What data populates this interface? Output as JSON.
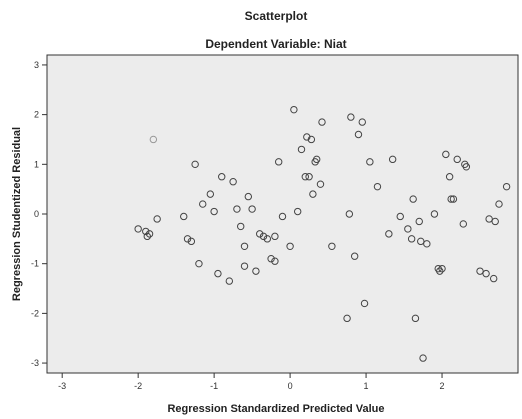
{
  "chart_data": {
    "type": "scatter",
    "title": "Scatterplot",
    "subtitle": "Dependent Variable: Niat",
    "xlabel": "Regression Standardized Predicted Value",
    "ylabel": "Regression Studentized Residual",
    "xlim": [
      -3.2,
      3.0
    ],
    "ylim": [
      -3.2,
      3.2
    ],
    "x_ticks": [
      -3,
      -2,
      -1,
      0,
      1,
      2
    ],
    "x_tick_labels": [
      "-3",
      "-2",
      "-1",
      "0",
      "1",
      "2"
    ],
    "y_ticks": [
      -3,
      -2,
      -1,
      0,
      1,
      2,
      3
    ],
    "y_tick_labels": [
      "-3",
      "-2",
      "-1",
      "0",
      "1",
      "2",
      "3"
    ],
    "grid": false,
    "point_color": "#444444",
    "background_color": "#ececec",
    "points": [
      {
        "x": -1.8,
        "y": 1.5,
        "light": true
      },
      {
        "x": -2.0,
        "y": -0.3
      },
      {
        "x": -1.9,
        "y": -0.35
      },
      {
        "x": -1.88,
        "y": -0.45
      },
      {
        "x": -1.85,
        "y": -0.4
      },
      {
        "x": -1.75,
        "y": -0.1
      },
      {
        "x": -1.4,
        "y": -0.05
      },
      {
        "x": -1.35,
        "y": -0.5
      },
      {
        "x": -1.3,
        "y": -0.55
      },
      {
        "x": -1.25,
        "y": 1.0
      },
      {
        "x": -1.2,
        "y": -1.0
      },
      {
        "x": -1.15,
        "y": 0.2
      },
      {
        "x": -1.05,
        "y": 0.4
      },
      {
        "x": -1.0,
        "y": 0.05
      },
      {
        "x": -0.95,
        "y": -1.2
      },
      {
        "x": -0.9,
        "y": 0.75
      },
      {
        "x": -0.8,
        "y": -1.35
      },
      {
        "x": -0.75,
        "y": 0.65
      },
      {
        "x": -0.7,
        "y": 0.1
      },
      {
        "x": -0.65,
        "y": -0.25
      },
      {
        "x": -0.6,
        "y": -1.05
      },
      {
        "x": -0.6,
        "y": -0.65
      },
      {
        "x": -0.55,
        "y": 0.35
      },
      {
        "x": -0.5,
        "y": 0.1
      },
      {
        "x": -0.45,
        "y": -1.15
      },
      {
        "x": -0.4,
        "y": -0.4
      },
      {
        "x": -0.35,
        "y": -0.45
      },
      {
        "x": -0.3,
        "y": -0.5
      },
      {
        "x": -0.25,
        "y": -0.9
      },
      {
        "x": -0.2,
        "y": -0.95
      },
      {
        "x": -0.15,
        "y": 1.05
      },
      {
        "x": -0.2,
        "y": -0.45
      },
      {
        "x": -0.1,
        "y": -0.05
      },
      {
        "x": 0.0,
        "y": -0.65
      },
      {
        "x": 0.05,
        "y": 2.1
      },
      {
        "x": 0.1,
        "y": 0.05
      },
      {
        "x": 0.15,
        "y": 1.3
      },
      {
        "x": 0.2,
        "y": 0.75
      },
      {
        "x": 0.22,
        "y": 1.55
      },
      {
        "x": 0.25,
        "y": 0.75
      },
      {
        "x": 0.28,
        "y": 1.5
      },
      {
        "x": 0.3,
        "y": 0.4
      },
      {
        "x": 0.33,
        "y": 1.05
      },
      {
        "x": 0.35,
        "y": 1.1
      },
      {
        "x": 0.4,
        "y": 0.6
      },
      {
        "x": 0.42,
        "y": 1.85
      },
      {
        "x": 0.55,
        "y": -0.65
      },
      {
        "x": 0.75,
        "y": -2.1
      },
      {
        "x": 0.78,
        "y": 0.0
      },
      {
        "x": 0.8,
        "y": 1.95
      },
      {
        "x": 0.85,
        "y": -0.85
      },
      {
        "x": 0.9,
        "y": 1.6
      },
      {
        "x": 0.95,
        "y": 1.85
      },
      {
        "x": 0.98,
        "y": -1.8
      },
      {
        "x": 1.05,
        "y": 1.05
      },
      {
        "x": 1.15,
        "y": 0.55
      },
      {
        "x": 1.3,
        "y": -0.4
      },
      {
        "x": 1.35,
        "y": 1.1
      },
      {
        "x": 1.45,
        "y": -0.05
      },
      {
        "x": 1.55,
        "y": -0.3
      },
      {
        "x": 1.6,
        "y": -0.5
      },
      {
        "x": 1.62,
        "y": 0.3
      },
      {
        "x": 1.65,
        "y": -2.1
      },
      {
        "x": 1.7,
        "y": -0.15
      },
      {
        "x": 1.72,
        "y": -0.55
      },
      {
        "x": 1.75,
        "y": -2.9
      },
      {
        "x": 1.8,
        "y": -0.6
      },
      {
        "x": 1.9,
        "y": 0.0
      },
      {
        "x": 1.95,
        "y": -1.1
      },
      {
        "x": 1.97,
        "y": -1.15
      },
      {
        "x": 2.0,
        "y": -1.1
      },
      {
        "x": 2.05,
        "y": 1.2
      },
      {
        "x": 2.1,
        "y": 0.75
      },
      {
        "x": 2.12,
        "y": 0.3
      },
      {
        "x": 2.15,
        "y": 0.3
      },
      {
        "x": 2.2,
        "y": 1.1
      },
      {
        "x": 2.28,
        "y": -0.2
      },
      {
        "x": 2.3,
        "y": 1.0
      },
      {
        "x": 2.32,
        "y": 0.95
      },
      {
        "x": 2.5,
        "y": -1.15
      },
      {
        "x": 2.58,
        "y": -1.2
      },
      {
        "x": 2.62,
        "y": -0.1
      },
      {
        "x": 2.68,
        "y": -1.3
      },
      {
        "x": 2.7,
        "y": -0.15
      },
      {
        "x": 2.75,
        "y": 0.2
      },
      {
        "x": 2.85,
        "y": 0.55
      }
    ]
  }
}
